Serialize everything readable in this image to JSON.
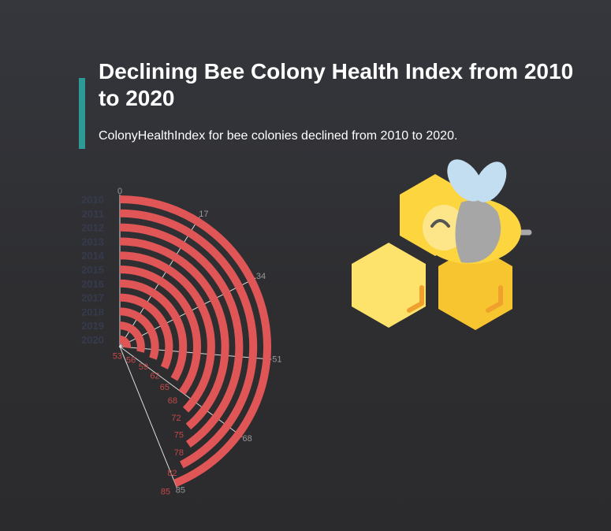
{
  "header": {
    "title": "Declining Bee Colony Health Index from 2010 to 2020",
    "subtitle": "ColonyHealthIndex for bee colonies declined from 2010 to 2020."
  },
  "colors": {
    "background": "#2e2f33",
    "accent": "#2e9a96",
    "bar": "#e05656",
    "bar_label": "#c44848",
    "category_label": "#363a4d",
    "axis": "#dddddd",
    "axis_label": "#999999"
  },
  "chart_data": {
    "type": "bar",
    "orientation": "radial",
    "categories": [
      "2010",
      "2011",
      "2012",
      "2013",
      "2014",
      "2015",
      "2016",
      "2017",
      "2018",
      "2019",
      "2020"
    ],
    "values": [
      85,
      82,
      78,
      75,
      72,
      68,
      65,
      62,
      59,
      56,
      53
    ],
    "value_labels": [
      "85",
      "82",
      "78",
      "75",
      "72",
      "68",
      "65",
      "62",
      "59",
      "56",
      "53"
    ],
    "axis_ticks": [
      0,
      17,
      34,
      51,
      68,
      85
    ],
    "axis_tick_labels": [
      "0",
      "17",
      "34",
      "51",
      "68",
      "85"
    ],
    "ylim": [
      0,
      85
    ],
    "title": "Declining Bee Colony Health Index from 2010 to 2020",
    "xlabel": "",
    "ylabel": "",
    "legend": "none",
    "grid": true
  },
  "illustration": {
    "icon": "bee-on-honeycomb-icon"
  }
}
